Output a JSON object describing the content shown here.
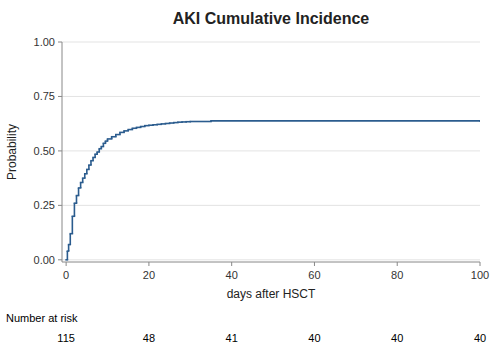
{
  "chart_data": {
    "type": "step",
    "title": "AKI Cumulative Incidence",
    "x_label": "days after HSCT",
    "y_label": "Probability",
    "xlim": [
      -1,
      100
    ],
    "ylim": [
      -0.01,
      1.0
    ],
    "xticks": [
      0,
      20,
      40,
      60,
      80,
      100
    ],
    "yticks": [
      {
        "value": 0.0,
        "label": "0.00"
      },
      {
        "value": 0.25,
        "label": "0.25"
      },
      {
        "value": 0.5,
        "label": "0.50"
      },
      {
        "value": 0.75,
        "label": "0.75"
      },
      {
        "value": 1.0,
        "label": "1.00"
      }
    ],
    "grid": true,
    "color": "#2b5c8e",
    "x": [
      0,
      0.3,
      0.6,
      1.0,
      1.5,
      2.0,
      2.5,
      3.0,
      3.5,
      4.0,
      4.5,
      5.0,
      5.5,
      6.0,
      6.5,
      7.0,
      7.5,
      8.0,
      8.5,
      9.0,
      9.5,
      10.0,
      11.0,
      12.0,
      13.0,
      14.0,
      15.0,
      16.0,
      17.0,
      18.0,
      19.0,
      20.0,
      21.0,
      22.0,
      23.0,
      24.0,
      25.0,
      26.0,
      27.0,
      28.0,
      29.0,
      30.0,
      35.0,
      100.0
    ],
    "values": [
      0.0,
      0.04,
      0.07,
      0.12,
      0.2,
      0.26,
      0.295,
      0.33,
      0.355,
      0.375,
      0.395,
      0.415,
      0.435,
      0.455,
      0.47,
      0.485,
      0.495,
      0.51,
      0.52,
      0.535,
      0.545,
      0.555,
      0.565,
      0.575,
      0.585,
      0.592,
      0.598,
      0.604,
      0.608,
      0.612,
      0.616,
      0.618,
      0.62,
      0.622,
      0.624,
      0.626,
      0.628,
      0.63,
      0.632,
      0.633,
      0.634,
      0.635,
      0.638,
      0.638
    ],
    "risk_label": "Number at risk",
    "risk_x": [
      0,
      20,
      40,
      60,
      80,
      100
    ],
    "risk_values": [
      115,
      48,
      41,
      40,
      40,
      40
    ]
  }
}
